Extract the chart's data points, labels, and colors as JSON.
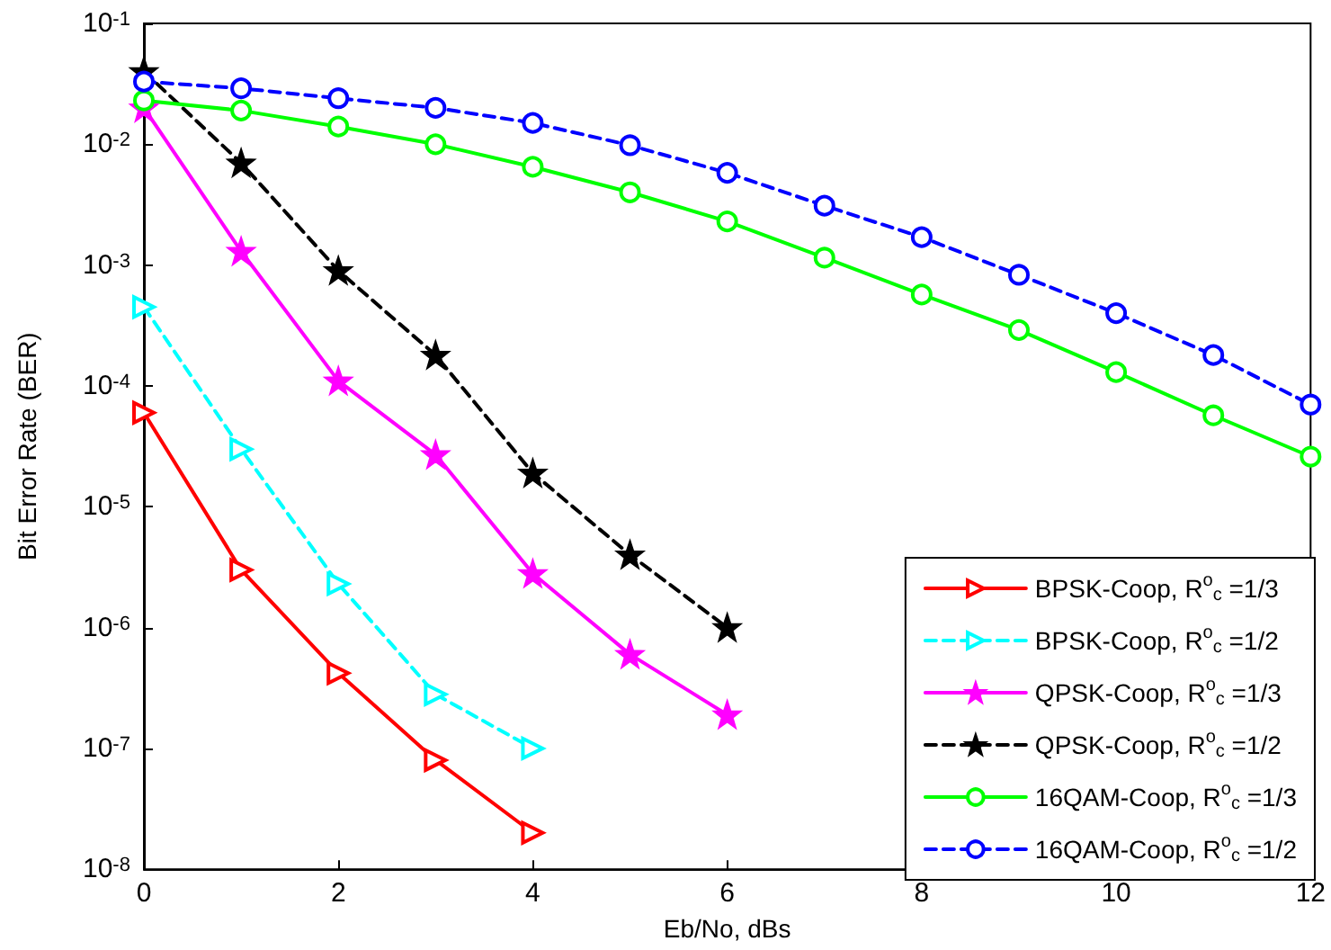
{
  "chart_data": {
    "type": "line",
    "xlabel": "Eb/No, dBs",
    "ylabel": "Bit Error Rate (BER)",
    "log": "y",
    "grid": false,
    "legend": "bottom right",
    "xlim": [
      0,
      12
    ],
    "xticks": [
      0,
      2,
      4,
      6,
      8,
      10,
      12
    ],
    "ylim": [
      1e-08,
      0.1
    ],
    "yticks": [
      {
        "value": 1e-08,
        "label": "10$^{-8}$"
      },
      {
        "value": 1e-07,
        "label": "10$^{-7}$"
      },
      {
        "value": 1e-06,
        "label": "10$^{-6}$"
      },
      {
        "value": 1e-05,
        "label": "10$^{-5}$"
      },
      {
        "value": 0.0001,
        "label": "10$^{-4}$"
      },
      {
        "value": 0.001,
        "label": "10$^{-3}$"
      },
      {
        "value": 0.01,
        "label": "10$^{-2}$"
      },
      {
        "value": 0.1,
        "label": "10$^{-1}$"
      }
    ],
    "series": [
      {
        "name": "BPSK-Coop, R$^{o}$$_{c}$ =1/3",
        "color": "#ff0000",
        "marker": "triangle",
        "line_style": "solid",
        "x": [
          0,
          1,
          2,
          3,
          4
        ],
        "values": [
          6e-05,
          3e-06,
          4.2e-07,
          8e-08,
          2e-08
        ]
      },
      {
        "name": "BPSK-Coop, R$^{o}$$_{c}$ =1/2",
        "color": "#00ffff",
        "marker": "triangle",
        "line_style": "dashed",
        "x": [
          0,
          1,
          2,
          3,
          4
        ],
        "values": [
          0.00045,
          3e-05,
          2.3e-06,
          2.8e-07,
          1e-07
        ]
      },
      {
        "name": "QPSK-Coop, R$^{o}$$_{c}$ =1/3",
        "color": "#ff00ff",
        "marker": "star",
        "line_style": "solid",
        "x": [
          0,
          1,
          2,
          3,
          4,
          5,
          6
        ],
        "values": [
          0.02,
          0.0013,
          0.00011,
          2.7e-05,
          2.8e-06,
          6e-07,
          1.9e-07
        ]
      },
      {
        "name": "QPSK-Coop, R$^{o}$$_{c}$ =1/2",
        "color": "#000000",
        "marker": "star",
        "line_style": "dashed",
        "x": [
          0,
          1,
          2,
          3,
          4,
          5,
          6
        ],
        "values": [
          0.04,
          0.007,
          0.0009,
          0.00018,
          1.9e-05,
          4e-06,
          1e-06
        ]
      },
      {
        "name": "16QAM-Coop, R$^{o}$$_{c}$ =1/3",
        "color": "#00ff00",
        "marker": "circle",
        "line_style": "solid",
        "x": [
          0,
          1,
          2,
          3,
          4,
          5,
          6,
          7,
          8,
          9,
          10,
          11,
          12
        ],
        "values": [
          0.023,
          0.019,
          0.014,
          0.01,
          0.0065,
          0.004,
          0.0023,
          0.00115,
          0.00057,
          0.00029,
          0.00013,
          5.7e-05,
          2.6e-05
        ]
      },
      {
        "name": "16QAM-Coop, R$^{o}$$_{c}$ =1/2",
        "color": "#0000ff",
        "marker": "circle",
        "line_style": "dashed",
        "x": [
          0,
          1,
          2,
          3,
          4,
          5,
          6,
          7,
          8,
          9,
          10,
          11,
          12
        ],
        "values": [
          0.033,
          0.029,
          0.024,
          0.02,
          0.015,
          0.0098,
          0.0058,
          0.0031,
          0.0017,
          0.00083,
          0.0004,
          0.00018,
          7e-05
        ]
      }
    ]
  }
}
